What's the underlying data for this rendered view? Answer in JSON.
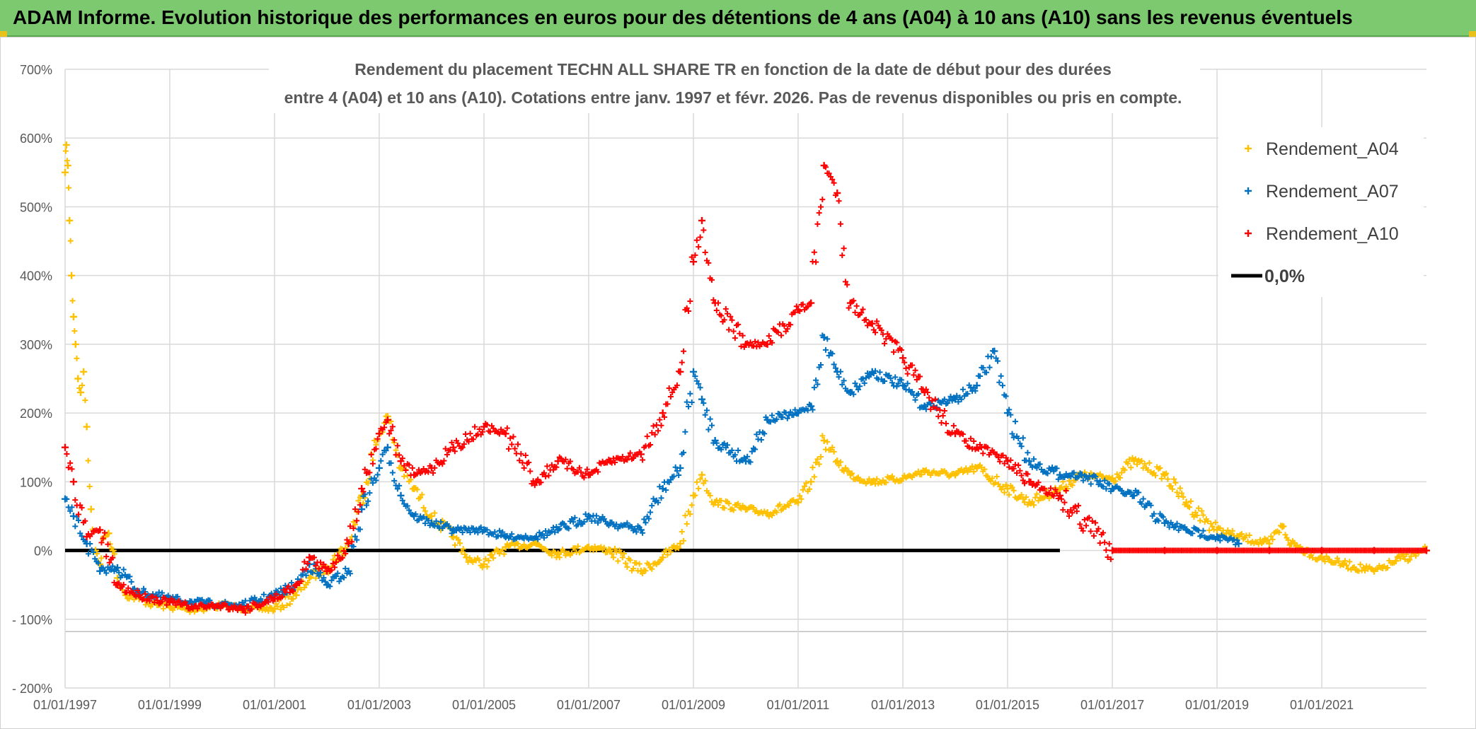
{
  "header": {
    "title": "ADAM Informe. Evolution historique des performances en euros pour des détentions de 4 ans (A04) à 10 ans (A10) sans les revenus éventuels"
  },
  "chart_data": {
    "type": "scatter",
    "title_line1": "Rendement du placement TECHN ALL SHARE TR en fonction de la date de début pour des durées",
    "title_line2": "entre 4 (A04) et 10 ans (A10). Cotations entre janv. 1997 et févr. 2026. Pas de revenus disponibles ou pris en compte.",
    "xlim": [
      "1997-01-01",
      "2023-01-01"
    ],
    "ylim": [
      -200,
      700
    ],
    "y_ticks": [
      {
        "value": 700,
        "label": "700%"
      },
      {
        "value": 600,
        "label": "600%"
      },
      {
        "value": 500,
        "label": "500%"
      },
      {
        "value": 400,
        "label": "400%"
      },
      {
        "value": 300,
        "label": "300%"
      },
      {
        "value": 200,
        "label": "200%"
      },
      {
        "value": 100,
        "label": "100%"
      },
      {
        "value": 0,
        "label": "0%"
      },
      {
        "value": -100,
        "label": "- 100%"
      },
      {
        "value": -200,
        "label": "- 200%"
      }
    ],
    "x_ticks": [
      {
        "value": "1997-01-01",
        "label": "01/01/1997"
      },
      {
        "value": "1999-01-01",
        "label": "01/01/1999"
      },
      {
        "value": "2001-01-01",
        "label": "01/01/2001"
      },
      {
        "value": "2003-01-01",
        "label": "01/01/2003"
      },
      {
        "value": "2005-01-01",
        "label": "01/01/2005"
      },
      {
        "value": "2007-01-01",
        "label": "01/01/2007"
      },
      {
        "value": "2009-01-01",
        "label": "01/01/2009"
      },
      {
        "value": "2011-01-01",
        "label": "01/01/2011"
      },
      {
        "value": "2013-01-01",
        "label": "01/01/2013"
      },
      {
        "value": "2015-01-01",
        "label": "01/01/2015"
      },
      {
        "value": "2017-01-01",
        "label": "01/01/2017"
      },
      {
        "value": "2019-01-01",
        "label": "01/01/2019"
      },
      {
        "value": "2021-01-01",
        "label": "01/01/2021"
      }
    ],
    "grid": true,
    "legend_position": "top-right",
    "series": [
      {
        "name": "Rendement_A04",
        "color": "#ffc000",
        "marker": "plus",
        "points": [
          [
            "1997-01-01",
            550
          ],
          [
            "1997-01-10",
            590
          ],
          [
            "1997-01-20",
            560
          ],
          [
            "1997-02-01",
            480
          ],
          [
            "1997-02-15",
            400
          ],
          [
            "1997-03-01",
            340
          ],
          [
            "1997-03-15",
            300
          ],
          [
            "1997-04-01",
            250
          ],
          [
            "1997-04-20",
            230
          ],
          [
            "1997-05-10",
            260
          ],
          [
            "1997-06-01",
            180
          ],
          [
            "1997-07-01",
            60
          ],
          [
            "1997-08-01",
            0
          ],
          [
            "1997-09-01",
            -20
          ],
          [
            "1997-10-01",
            20
          ],
          [
            "1997-11-01",
            25
          ],
          [
            "1997-12-01",
            0
          ],
          [
            "1998-01-01",
            -40
          ],
          [
            "1998-03-01",
            -65
          ],
          [
            "1998-06-01",
            -70
          ],
          [
            "1998-09-01",
            -78
          ],
          [
            "1999-01-01",
            -82
          ],
          [
            "1999-06-01",
            -86
          ],
          [
            "2000-01-01",
            -80
          ],
          [
            "2000-06-01",
            -84
          ],
          [
            "2001-01-01",
            -85
          ],
          [
            "2001-06-01",
            -65
          ],
          [
            "2001-09-01",
            -40
          ],
          [
            "2002-01-01",
            -25
          ],
          [
            "2002-06-01",
            10
          ],
          [
            "2002-09-01",
            80
          ],
          [
            "2003-01-01",
            170
          ],
          [
            "2003-03-01",
            195
          ],
          [
            "2003-06-01",
            120
          ],
          [
            "2003-09-01",
            90
          ],
          [
            "2004-01-01",
            50
          ],
          [
            "2004-06-01",
            20
          ],
          [
            "2004-09-01",
            -10
          ],
          [
            "2005-01-01",
            -20
          ],
          [
            "2005-06-01",
            5
          ],
          [
            "2006-01-01",
            10
          ],
          [
            "2006-06-01",
            -5
          ],
          [
            "2007-01-01",
            5
          ],
          [
            "2007-06-01",
            0
          ],
          [
            "2008-01-01",
            -30
          ],
          [
            "2008-06-01",
            -10
          ],
          [
            "2008-10-01",
            10
          ],
          [
            "2009-01-01",
            80
          ],
          [
            "2009-03-01",
            110
          ],
          [
            "2009-06-01",
            70
          ],
          [
            "2010-01-01",
            60
          ],
          [
            "2010-06-01",
            55
          ],
          [
            "2011-01-01",
            70
          ],
          [
            "2011-04-01",
            100
          ],
          [
            "2011-07-01",
            160
          ],
          [
            "2011-10-01",
            130
          ],
          [
            "2012-01-01",
            110
          ],
          [
            "2012-06-01",
            100
          ],
          [
            "2013-01-01",
            105
          ],
          [
            "2013-06-01",
            115
          ],
          [
            "2014-01-01",
            110
          ],
          [
            "2014-06-01",
            120
          ],
          [
            "2015-01-01",
            90
          ],
          [
            "2015-06-01",
            70
          ],
          [
            "2016-01-01",
            90
          ],
          [
            "2016-06-01",
            110
          ],
          [
            "2017-01-01",
            105
          ],
          [
            "2017-06-01",
            130
          ],
          [
            "2018-01-01",
            110
          ],
          [
            "2018-06-01",
            70
          ],
          [
            "2019-01-01",
            30
          ],
          [
            "2019-06-01",
            20
          ],
          [
            "2020-01-01",
            10
          ],
          [
            "2020-04-01",
            35
          ],
          [
            "2020-06-01",
            10
          ],
          [
            "2021-01-01",
            -10
          ],
          [
            "2021-06-01",
            -20
          ],
          [
            "2022-01-01",
            -30
          ],
          [
            "2022-03-01",
            -25
          ],
          [
            "2022-06-01",
            -15
          ],
          [
            "2023-01-01",
            0
          ]
        ]
      },
      {
        "name": "Rendement_A07",
        "color": "#0070c0",
        "marker": "plus",
        "points": [
          [
            "1997-01-01",
            75
          ],
          [
            "1997-03-01",
            50
          ],
          [
            "1997-06-01",
            10
          ],
          [
            "1997-09-01",
            -30
          ],
          [
            "1998-01-01",
            -25
          ],
          [
            "1998-06-01",
            -60
          ],
          [
            "1999-01-01",
            -70
          ],
          [
            "1999-06-01",
            -75
          ],
          [
            "2000-01-01",
            -78
          ],
          [
            "2000-06-01",
            -80
          ],
          [
            "2001-01-01",
            -65
          ],
          [
            "2001-06-01",
            -50
          ],
          [
            "2001-09-01",
            -20
          ],
          [
            "2002-01-01",
            -50
          ],
          [
            "2002-06-01",
            -30
          ],
          [
            "2002-09-01",
            60
          ],
          [
            "2003-01-01",
            120
          ],
          [
            "2003-03-01",
            150
          ],
          [
            "2003-06-01",
            80
          ],
          [
            "2003-09-01",
            50
          ],
          [
            "2004-01-01",
            40
          ],
          [
            "2004-06-01",
            30
          ],
          [
            "2005-01-01",
            30
          ],
          [
            "2005-06-01",
            20
          ],
          [
            "2006-01-01",
            20
          ],
          [
            "2006-06-01",
            30
          ],
          [
            "2007-01-01",
            50
          ],
          [
            "2007-06-01",
            40
          ],
          [
            "2008-01-01",
            30
          ],
          [
            "2008-06-01",
            90
          ],
          [
            "2008-10-01",
            120
          ],
          [
            "2009-01-01",
            260
          ],
          [
            "2009-03-01",
            220
          ],
          [
            "2009-06-01",
            160
          ],
          [
            "2010-01-01",
            130
          ],
          [
            "2010-06-01",
            190
          ],
          [
            "2011-01-01",
            200
          ],
          [
            "2011-04-01",
            210
          ],
          [
            "2011-07-01",
            310
          ],
          [
            "2011-10-01",
            260
          ],
          [
            "2012-01-01",
            230
          ],
          [
            "2012-06-01",
            260
          ],
          [
            "2013-01-01",
            240
          ],
          [
            "2013-06-01",
            210
          ],
          [
            "2014-01-01",
            220
          ],
          [
            "2014-06-01",
            240
          ],
          [
            "2014-10-01",
            290
          ],
          [
            "2015-01-01",
            200
          ],
          [
            "2015-06-01",
            130
          ],
          [
            "2016-01-01",
            110
          ],
          [
            "2016-06-01",
            110
          ],
          [
            "2017-01-01",
            90
          ],
          [
            "2017-06-01",
            80
          ],
          [
            "2018-01-01",
            40
          ],
          [
            "2018-06-01",
            30
          ],
          [
            "2019-01-01",
            20
          ],
          [
            "2019-06-01",
            10
          ]
        ]
      },
      {
        "name": "Rendement_A10",
        "color": "#ff0000",
        "marker": "plus",
        "points": [
          [
            "1997-01-01",
            150
          ],
          [
            "1997-03-01",
            100
          ],
          [
            "1997-06-01",
            20
          ],
          [
            "1997-09-01",
            30
          ],
          [
            "1998-01-01",
            -50
          ],
          [
            "1998-06-01",
            -65
          ],
          [
            "1999-01-01",
            -75
          ],
          [
            "1999-06-01",
            -82
          ],
          [
            "2000-01-01",
            -80
          ],
          [
            "2000-06-01",
            -85
          ],
          [
            "2001-01-01",
            -70
          ],
          [
            "2001-06-01",
            -50
          ],
          [
            "2001-09-01",
            -10
          ],
          [
            "2002-01-01",
            -30
          ],
          [
            "2002-06-01",
            10
          ],
          [
            "2002-09-01",
            90
          ],
          [
            "2003-01-01",
            170
          ],
          [
            "2003-03-01",
            190
          ],
          [
            "2003-06-01",
            130
          ],
          [
            "2003-09-01",
            110
          ],
          [
            "2004-01-01",
            120
          ],
          [
            "2004-06-01",
            150
          ],
          [
            "2005-01-01",
            180
          ],
          [
            "2005-06-01",
            170
          ],
          [
            "2006-01-01",
            100
          ],
          [
            "2006-06-01",
            130
          ],
          [
            "2007-01-01",
            110
          ],
          [
            "2007-06-01",
            130
          ],
          [
            "2008-01-01",
            140
          ],
          [
            "2008-06-01",
            200
          ],
          [
            "2008-10-01",
            260
          ],
          [
            "2009-01-01",
            420
          ],
          [
            "2009-03-01",
            480
          ],
          [
            "2009-06-01",
            360
          ],
          [
            "2010-01-01",
            300
          ],
          [
            "2010-06-01",
            300
          ],
          [
            "2011-01-01",
            350
          ],
          [
            "2011-04-01",
            360
          ],
          [
            "2011-07-01",
            560
          ],
          [
            "2011-10-01",
            520
          ],
          [
            "2012-01-01",
            360
          ],
          [
            "2012-06-01",
            330
          ],
          [
            "2013-01-01",
            280
          ],
          [
            "2013-06-01",
            230
          ],
          [
            "2014-01-01",
            170
          ],
          [
            "2014-06-01",
            150
          ],
          [
            "2015-01-01",
            130
          ],
          [
            "2015-06-01",
            100
          ],
          [
            "2016-01-01",
            80
          ],
          [
            "2017-01-01",
            0
          ],
          [
            "2018-01-01",
            0
          ],
          [
            "2019-01-01",
            0
          ],
          [
            "2020-01-01",
            0
          ],
          [
            "2021-01-01",
            0
          ],
          [
            "2022-01-01",
            0
          ],
          [
            "2023-01-01",
            0
          ]
        ]
      },
      {
        "name": "0,0%",
        "color": "#000000",
        "marker": "line",
        "points": [
          [
            "1997-01-01",
            0
          ],
          [
            "2016-01-01",
            0
          ]
        ]
      }
    ]
  }
}
